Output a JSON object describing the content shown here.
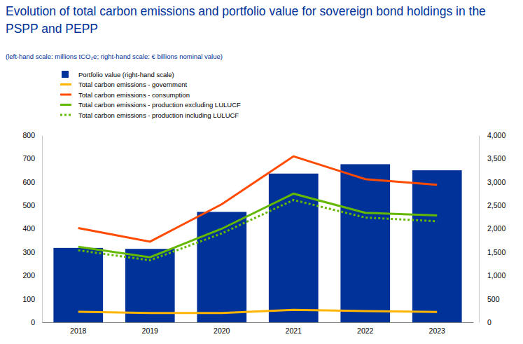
{
  "chart_data": {
    "type": "bar",
    "title": "Evolution of total carbon emissions and portfolio value for sovereign bond holdings in the PSPP and PEPP",
    "subtitle": "(left-hand scale: millions tCO₂e; right-hand scale: € billions nominal value)",
    "categories": [
      "2018",
      "2019",
      "2020",
      "2021",
      "2022",
      "2023"
    ],
    "series": [
      {
        "name": "Portfolio value (right-hand scale)",
        "type": "bar",
        "axis": "y2",
        "color": "#003299",
        "values": [
          1590,
          1570,
          2360,
          3180,
          3380,
          3250
        ]
      },
      {
        "name": "Total carbon emissions - government",
        "type": "line",
        "color": "#ffb400",
        "line_style": "solid",
        "values": [
          45,
          40,
          40,
          53,
          48,
          44
        ]
      },
      {
        "name": "Total carbon emissions - consumption",
        "type": "line",
        "color": "#ff4b00",
        "line_style": "solid",
        "values": [
          403,
          345,
          505,
          710,
          612,
          588
        ]
      },
      {
        "name": "Total carbon emissions - production excluding LULUCF",
        "type": "line",
        "color": "#65b800",
        "line_style": "solid",
        "values": [
          323,
          278,
          400,
          550,
          468,
          457
        ]
      },
      {
        "name": "Total carbon emissions - production including LULUCF",
        "type": "line",
        "color": "#65b800",
        "line_style": "dotted",
        "values": [
          308,
          265,
          380,
          523,
          448,
          432
        ]
      }
    ],
    "ylim": [
      0,
      800
    ],
    "yticks": [
      0,
      100,
      200,
      300,
      400,
      500,
      600,
      700,
      800
    ],
    "y2lim": [
      0,
      4000
    ],
    "y2ticks": [
      0,
      500,
      {
        "value": 1000,
        "label": "1,000"
      },
      {
        "value": 1500,
        "label": "1,500"
      },
      {
        "value": 2000,
        "label": "2,000"
      },
      {
        "value": 2500,
        "label": "2,500"
      },
      {
        "value": 3000,
        "label": "3,000"
      },
      {
        "value": 3500,
        "label": "3,500"
      },
      {
        "value": 4000,
        "label": "4,000"
      }
    ],
    "grid": false,
    "legend": "top-left"
  }
}
